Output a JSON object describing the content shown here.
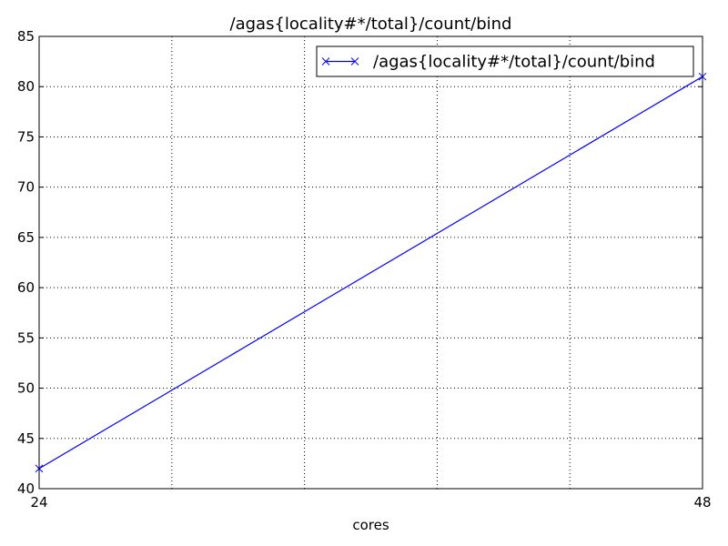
{
  "chart_data": {
    "type": "line",
    "title": "/agas{locality#*/total}/count/bind",
    "xlabel": "cores",
    "ylabel": "",
    "xlim": [
      24,
      48
    ],
    "ylim": [
      40,
      85
    ],
    "x_ticks": [
      24,
      48
    ],
    "x_tick_labels": [
      "24",
      "48"
    ],
    "x_grid_count": 5,
    "y_ticks": [
      40,
      45,
      50,
      55,
      60,
      65,
      70,
      75,
      80,
      85
    ],
    "y_tick_labels": [
      "40",
      "45",
      "50",
      "55",
      "60",
      "65",
      "70",
      "75",
      "80",
      "85"
    ],
    "grid": true,
    "legend_position": "top-right",
    "series": [
      {
        "name": "/agas{locality#*/total}/count/bind",
        "color": "#0000ff",
        "marker": "x",
        "x": [
          24,
          48
        ],
        "y": [
          42,
          81
        ]
      }
    ]
  }
}
